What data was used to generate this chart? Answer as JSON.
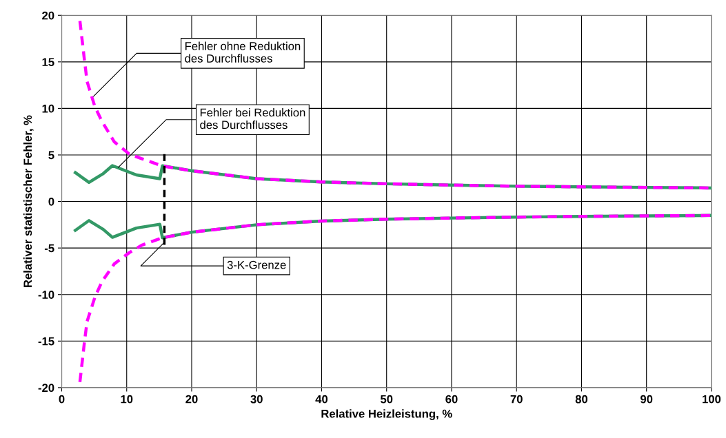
{
  "chart_data": {
    "type": "line",
    "xlabel": "Relative Heizleistung, %",
    "ylabel": "Relativer statistischer Fehler, %",
    "xlim": [
      0,
      100
    ],
    "xticks": [
      0,
      10,
      20,
      30,
      40,
      50,
      60,
      70,
      80,
      90,
      100
    ],
    "ylim": [
      -20,
      20
    ],
    "yticks": [
      -20,
      -15,
      -10,
      -5,
      0,
      5,
      10,
      15,
      20
    ],
    "grid": true,
    "series": [
      {
        "color": "#ff00ff",
        "line_style": "dashed",
        "x": [
          2.8,
          3.5,
          3.9,
          5.1,
          6.2,
          8.1,
          10.4,
          12.3,
          15.5,
          20,
          30,
          40,
          50,
          60,
          70,
          80,
          90,
          100
        ],
        "values": [
          19.4,
          15.2,
          12.9,
          10.2,
          8.6,
          6.4,
          5.1,
          4.6,
          3.8,
          3.3,
          2.45,
          2.1,
          1.9,
          1.76,
          1.64,
          1.57,
          1.51,
          1.45
        ]
      },
      {
        "color": "#ff00ff",
        "line_style": "dashed",
        "x": [
          2.8,
          3.5,
          3.9,
          5.1,
          6.2,
          8.1,
          10.4,
          12.3,
          15.5,
          20,
          30,
          40,
          50,
          60,
          70,
          80,
          90,
          100
        ],
        "values": [
          -19.4,
          -15.1,
          -12.9,
          -10.3,
          -8.6,
          -6.7,
          -5.5,
          -4.7,
          -3.9,
          -3.3,
          -2.5,
          -2.1,
          -1.9,
          -1.78,
          -1.68,
          -1.6,
          -1.55,
          -1.5
        ]
      },
      {
        "color": "#339966",
        "line_style": "solid",
        "x": [
          2.1,
          4.2,
          6.4,
          7.8,
          11.5,
          15.1,
          15.5,
          20,
          30,
          40,
          50,
          60,
          70,
          80,
          90,
          100
        ],
        "values": [
          3.1,
          2.05,
          3.0,
          3.85,
          2.85,
          2.45,
          3.84,
          3.3,
          2.45,
          2.1,
          1.9,
          1.76,
          1.64,
          1.57,
          1.51,
          1.45
        ]
      },
      {
        "color": "#339966",
        "line_style": "solid",
        "x": [
          2.1,
          4.2,
          6.4,
          7.8,
          11.5,
          15.1,
          15.5,
          20,
          30,
          40,
          50,
          60,
          70,
          80,
          90,
          100
        ],
        "values": [
          -3.1,
          -2.05,
          -3.0,
          -3.85,
          -2.85,
          -2.45,
          -3.9,
          -3.3,
          -2.5,
          -2.1,
          -1.9,
          -1.78,
          -1.68,
          -1.6,
          -1.55,
          -1.5
        ]
      },
      {
        "color": "#000000",
        "line_style": "dashed",
        "x": [
          15.8,
          15.8
        ],
        "values": [
          5.1,
          -4.8
        ]
      }
    ],
    "annotations": [
      {
        "text": "Fehler ohne Reduktion\ndes Durchflusses",
        "x": 4.9,
        "y": 11.3
      },
      {
        "text": "Fehler bei Reduktion\ndes Durchflusses",
        "x": 8.7,
        "y": 3.65
      },
      {
        "text": "3-K-Grenze",
        "x": 15.85,
        "y": -4.35
      }
    ]
  }
}
